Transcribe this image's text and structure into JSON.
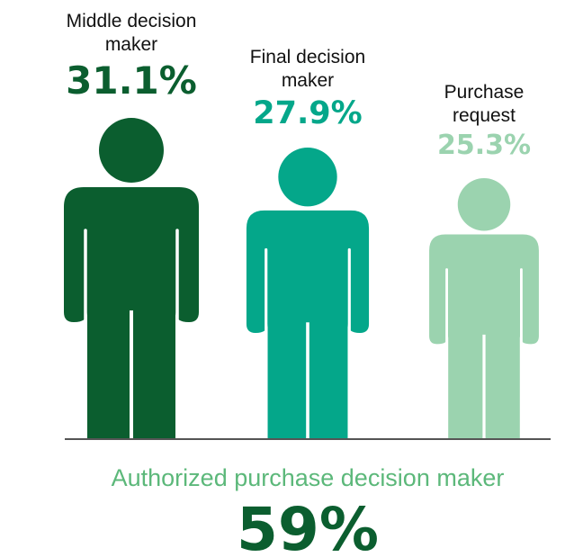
{
  "chart_data": {
    "type": "bar",
    "categories": [
      "Middle decision maker",
      "Final decision maker",
      "Purchase request"
    ],
    "category_lines": [
      [
        "Middle decision",
        "maker"
      ],
      [
        "Final decision",
        "maker"
      ],
      [
        "Purchase",
        "request"
      ]
    ],
    "values": [
      31.1,
      27.9,
      25.3
    ],
    "value_labels": [
      "31.1%",
      "27.9%",
      "25.3%"
    ],
    "colors": [
      "#0b5e2f",
      "#04a78a",
      "#9bd3af"
    ],
    "marker": "person-icon",
    "summary": {
      "label": "Authorized purchase decision maker",
      "value": 59,
      "value_label": "59%",
      "label_color": "#5cb87a",
      "value_color": "#0b5e2f"
    }
  }
}
